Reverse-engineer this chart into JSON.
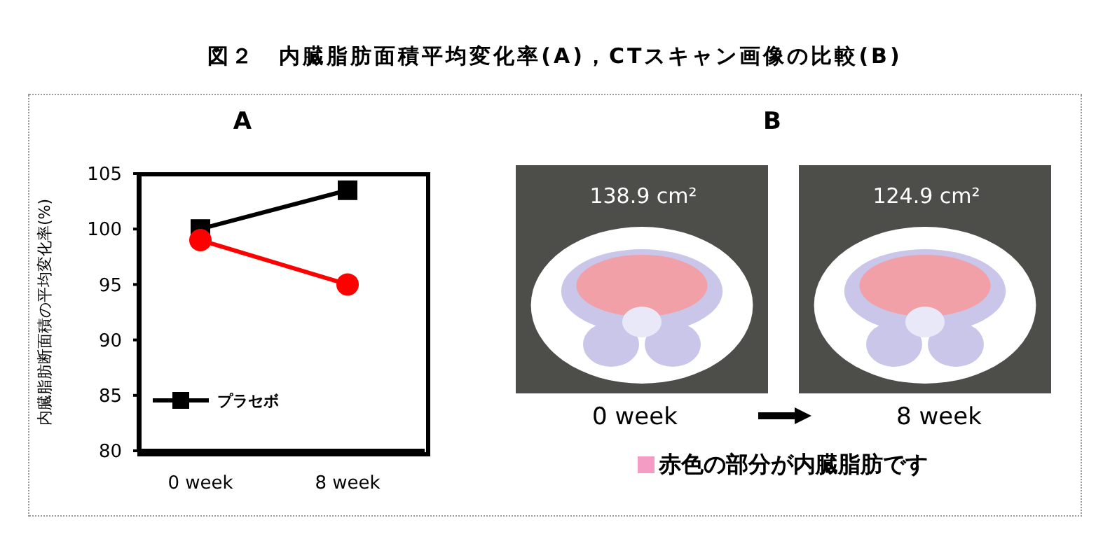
{
  "chart_data": [
    {
      "type": "line",
      "title": "図２　内臓脂肪面積平均変化率(A)，CTスキャン画像の比較(B)",
      "subtitle": "A",
      "ylabel": "内臓脂肪断面積の平均変化率(%)",
      "categories": [
        "0 week",
        "8 week"
      ],
      "series": [
        {
          "name": "プラセボ",
          "color": "#000000",
          "values": [
            100,
            103.5
          ],
          "marker": "square"
        },
        {
          "color": "#ff0000",
          "values": [
            99,
            95
          ],
          "marker": "circle"
        }
      ],
      "ylim": [
        80,
        105
      ],
      "yticks": [
        80,
        85,
        90,
        95,
        100,
        105
      ],
      "legend": "bottom left"
    },
    {
      "type": "other",
      "title": "B",
      "annotations": [
        "138.9 cm²",
        "124.9 cm²",
        "0 week",
        "8 week",
        "赤色の部分が内臓脂肪です"
      ]
    }
  ]
}
